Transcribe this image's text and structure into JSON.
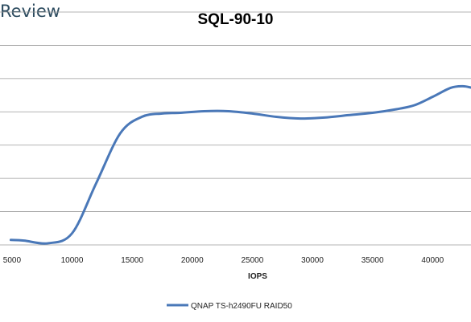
{
  "brand": {
    "text": "Review"
  },
  "chart_data": {
    "type": "line",
    "title": "SQL-90-10",
    "xlabel": "IOPS",
    "ylabel": "",
    "xlim": [
      4000,
      43200
    ],
    "ylim": [
      0,
      7
    ],
    "grid": "horizontal",
    "legend_position": "bottom",
    "x_ticks": [
      5000,
      10000,
      15000,
      20000,
      25000,
      30000,
      35000,
      40000
    ],
    "y_ticks": [
      0,
      1,
      2,
      3,
      4,
      5,
      6,
      7
    ],
    "series": [
      {
        "name": "QNAP TS-h2490FU RAID50",
        "color": "#4a78b8",
        "x": [
          4900,
          6000,
          8000,
          10000,
          12000,
          14000,
          15800,
          17500,
          19000,
          21000,
          23000,
          25000,
          27000,
          29000,
          31000,
          33000,
          35000,
          37000,
          38500,
          40000,
          41500,
          42500,
          43200
        ],
        "y": [
          0.15,
          0.13,
          0.05,
          0.35,
          1.85,
          3.35,
          3.85,
          3.95,
          3.97,
          4.02,
          4.02,
          3.95,
          3.85,
          3.8,
          3.83,
          3.9,
          3.97,
          4.08,
          4.2,
          4.45,
          4.72,
          4.77,
          4.73
        ]
      }
    ]
  }
}
